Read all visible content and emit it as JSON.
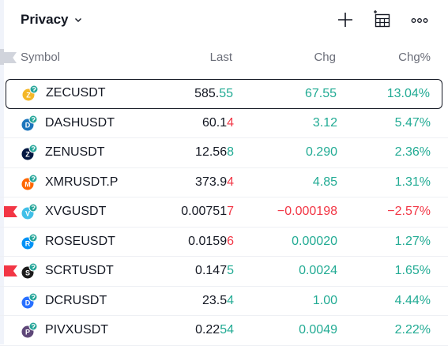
{
  "header": {
    "title": "Privacy",
    "icons": [
      "plus-icon",
      "add-column-icon",
      "more-options-icon"
    ]
  },
  "columns": {
    "symbol": "Symbol",
    "last": "Last",
    "chg": "Chg",
    "chg_pct": "Chg%"
  },
  "colors": {
    "up": "#22ab94",
    "down": "#f23645",
    "flag": "#f23645",
    "text": "#131722",
    "muted": "#6a6d78"
  },
  "rows": [
    {
      "symbol": "ZECUSDT",
      "last_base": "585.",
      "last_tail": "55",
      "tail_dir": "up",
      "chg": "67.55",
      "chg_pct": "13.04%",
      "dir": "up",
      "flag": false,
      "selected": true,
      "coin": "#f4b728",
      "coin_glyph": "Z"
    },
    {
      "symbol": "DASHUSDT",
      "last_base": "60.1",
      "last_tail": "4",
      "tail_dir": "down",
      "chg": "3.12",
      "chg_pct": "5.47%",
      "dir": "up",
      "flag": false,
      "selected": false,
      "coin": "#1c75bc",
      "coin_glyph": "D"
    },
    {
      "symbol": "ZENUSDT",
      "last_base": "12.56",
      "last_tail": "8",
      "tail_dir": "up",
      "chg": "0.290",
      "chg_pct": "2.36%",
      "dir": "up",
      "flag": false,
      "selected": false,
      "coin": "#041742",
      "coin_glyph": "Z"
    },
    {
      "symbol": "XMRUSDT.P",
      "last_base": "373.9",
      "last_tail": "4",
      "tail_dir": "down",
      "chg": "4.85",
      "chg_pct": "1.31%",
      "dir": "up",
      "flag": false,
      "selected": false,
      "coin": "#ff6600",
      "coin_glyph": "M"
    },
    {
      "symbol": "XVGUSDT",
      "last_base": "0.00751",
      "last_tail": "7",
      "tail_dir": "down",
      "chg": "−0.000198",
      "chg_pct": "−2.57%",
      "dir": "down",
      "flag": true,
      "selected": false,
      "coin": "#40bfe8",
      "coin_glyph": "V"
    },
    {
      "symbol": "ROSEUSDT",
      "last_base": "0.0159",
      "last_tail": "6",
      "tail_dir": "down",
      "chg": "0.00020",
      "chg_pct": "1.27%",
      "dir": "up",
      "flag": false,
      "selected": false,
      "coin": "#0092f6",
      "coin_glyph": "R"
    },
    {
      "symbol": "SCRTUSDT",
      "last_base": "0.147",
      "last_tail": "5",
      "tail_dir": "up",
      "chg": "0.0024",
      "chg_pct": "1.65%",
      "dir": "up",
      "flag": true,
      "selected": false,
      "coin": "#1b1b1b",
      "coin_glyph": "S"
    },
    {
      "symbol": "DCRUSDT",
      "last_base": "23.5",
      "last_tail": "4",
      "tail_dir": "up",
      "chg": "1.00",
      "chg_pct": "4.44%",
      "dir": "up",
      "flag": false,
      "selected": false,
      "coin": "#2970ff",
      "coin_glyph": "D"
    },
    {
      "symbol": "PIVXUSDT",
      "last_base": "0.22",
      "last_tail": "54",
      "tail_dir": "up",
      "chg": "0.0049",
      "chg_pct": "2.22%",
      "dir": "up",
      "flag": false,
      "selected": false,
      "coin": "#5e4778",
      "coin_glyph": "P"
    }
  ]
}
